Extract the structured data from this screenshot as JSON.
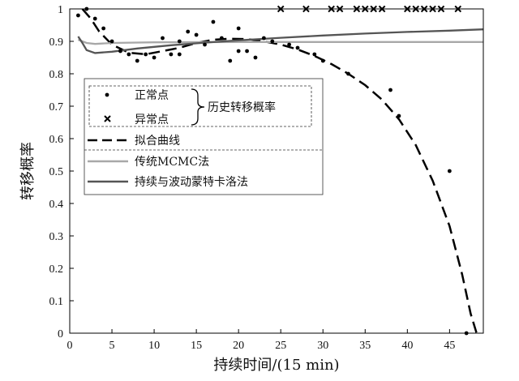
{
  "chart_data": {
    "type": "scatter",
    "xlabel": "持续时间/(15 min)",
    "ylabel": "转移概率",
    "xlim": [
      0,
      49
    ],
    "ylim": [
      0,
      1
    ],
    "xticks": [
      0,
      5,
      10,
      15,
      20,
      25,
      30,
      35,
      40,
      45
    ],
    "yticks": [
      0,
      0.1,
      0.2,
      0.3,
      0.4,
      0.5,
      0.6,
      0.7,
      0.8,
      0.9,
      1
    ],
    "grid": false,
    "legend": {
      "placement": "upper-left",
      "brace_label": "历史转移概率",
      "entries": [
        {
          "key": "normal",
          "label": "正常点"
        },
        {
          "key": "abnormal",
          "label": "异常点"
        },
        {
          "key": "fit",
          "label": "拟合曲线"
        },
        {
          "key": "mcmc",
          "label": "传统MCMC法"
        },
        {
          "key": "pwmc",
          "label": "持续与波动蒙特卡洛法"
        }
      ]
    },
    "series": [
      {
        "name": "正常点",
        "kind": "dot",
        "points": [
          [
            1,
            0.98
          ],
          [
            2,
            1.0
          ],
          [
            3,
            0.97
          ],
          [
            4,
            0.94
          ],
          [
            5,
            0.9
          ],
          [
            6,
            0.87
          ],
          [
            7,
            0.86
          ],
          [
            8,
            0.84
          ],
          [
            9,
            0.86
          ],
          [
            10,
            0.85
          ],
          [
            11,
            0.91
          ],
          [
            12,
            0.86
          ],
          [
            13,
            0.9
          ],
          [
            13,
            0.86
          ],
          [
            14,
            0.93
          ],
          [
            15,
            0.92
          ],
          [
            16,
            0.89
          ],
          [
            17,
            0.96
          ],
          [
            18,
            0.91
          ],
          [
            19,
            0.84
          ],
          [
            20,
            0.94
          ],
          [
            20,
            0.87
          ],
          [
            21,
            0.87
          ],
          [
            22,
            0.85
          ],
          [
            23,
            0.91
          ],
          [
            24,
            0.9
          ],
          [
            26,
            0.89
          ],
          [
            27,
            0.88
          ],
          [
            29,
            0.86
          ],
          [
            30,
            0.84
          ],
          [
            33,
            0.8
          ],
          [
            38,
            0.75
          ],
          [
            39,
            0.67
          ],
          [
            45,
            0.5
          ],
          [
            47,
            0.0
          ]
        ]
      },
      {
        "name": "异常点",
        "kind": "cross",
        "points": [
          [
            25,
            1
          ],
          [
            28,
            1
          ],
          [
            31,
            1
          ],
          [
            32,
            1
          ],
          [
            34,
            1
          ],
          [
            35,
            1
          ],
          [
            36,
            1
          ],
          [
            37,
            1
          ],
          [
            40,
            1
          ],
          [
            41,
            1
          ],
          [
            42,
            1
          ],
          [
            43,
            1
          ],
          [
            44,
            1
          ],
          [
            46,
            1
          ]
        ]
      },
      {
        "name": "拟合曲线",
        "kind": "line",
        "style": "dashed",
        "color": "#000000",
        "points": [
          [
            1.5,
            1.0
          ],
          [
            2.5,
            0.97
          ],
          [
            3.5,
            0.93
          ],
          [
            5,
            0.89
          ],
          [
            7,
            0.865
          ],
          [
            9,
            0.86
          ],
          [
            11,
            0.87
          ],
          [
            13,
            0.88
          ],
          [
            15,
            0.895
          ],
          [
            17,
            0.905
          ],
          [
            19,
            0.908
          ],
          [
            21,
            0.907
          ],
          [
            23,
            0.9
          ],
          [
            25,
            0.89
          ],
          [
            27,
            0.875
          ],
          [
            29,
            0.855
          ],
          [
            31,
            0.83
          ],
          [
            33,
            0.8
          ],
          [
            35,
            0.765
          ],
          [
            37,
            0.72
          ],
          [
            39,
            0.66
          ],
          [
            41,
            0.58
          ],
          [
            43,
            0.47
          ],
          [
            45,
            0.33
          ],
          [
            46.5,
            0.18
          ],
          [
            47.5,
            0.06
          ],
          [
            48.2,
            0.0
          ]
        ]
      },
      {
        "name": "传统MCMC法",
        "kind": "line",
        "style": "solid",
        "color": "#a8a8a8",
        "points": [
          [
            1,
            0.905
          ],
          [
            2,
            0.895
          ],
          [
            3,
            0.892
          ],
          [
            5,
            0.895
          ],
          [
            10,
            0.897
          ],
          [
            20,
            0.898
          ],
          [
            30,
            0.898
          ],
          [
            49,
            0.898
          ]
        ]
      },
      {
        "name": "持续与波动蒙特卡洛法",
        "kind": "line",
        "style": "solid",
        "color": "#555555",
        "points": [
          [
            1,
            0.915
          ],
          [
            1.5,
            0.895
          ],
          [
            2,
            0.873
          ],
          [
            3,
            0.864
          ],
          [
            5,
            0.868
          ],
          [
            8,
            0.878
          ],
          [
            12,
            0.888
          ],
          [
            16,
            0.896
          ],
          [
            20,
            0.903
          ],
          [
            25,
            0.911
          ],
          [
            30,
            0.918
          ],
          [
            35,
            0.924
          ],
          [
            40,
            0.929
          ],
          [
            45,
            0.933
          ],
          [
            49,
            0.937
          ]
        ]
      }
    ]
  }
}
